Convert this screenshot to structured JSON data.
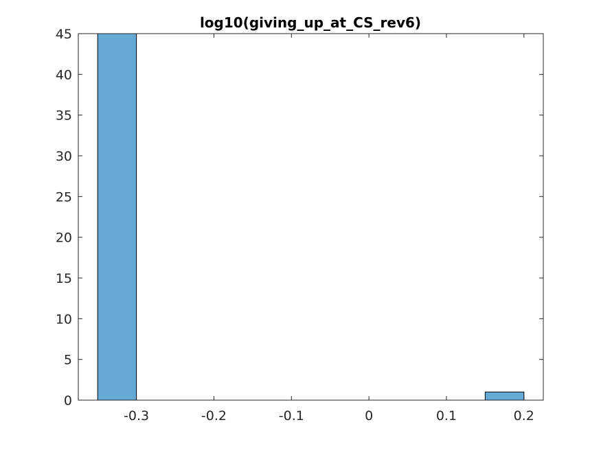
{
  "chart_data": {
    "type": "bar",
    "title": "log10(giving_up_at_CS_rev6)",
    "xlabel": "",
    "ylabel": "",
    "bins": [
      {
        "x0": -0.35,
        "x1": -0.3,
        "count": 45
      },
      {
        "x0": -0.3,
        "x1": -0.25,
        "count": 0
      },
      {
        "x0": -0.25,
        "x1": -0.2,
        "count": 0
      },
      {
        "x0": -0.2,
        "x1": -0.15,
        "count": 0
      },
      {
        "x0": -0.15,
        "x1": -0.1,
        "count": 0
      },
      {
        "x0": -0.1,
        "x1": -0.05,
        "count": 0
      },
      {
        "x0": -0.05,
        "x1": 0.0,
        "count": 0
      },
      {
        "x0": 0.0,
        "x1": 0.05,
        "count": 0
      },
      {
        "x0": 0.05,
        "x1": 0.1,
        "count": 0
      },
      {
        "x0": 0.1,
        "x1": 0.15,
        "count": 0
      },
      {
        "x0": 0.15,
        "x1": 0.2,
        "count": 1
      }
    ],
    "xlim": [
      -0.375,
      0.225
    ],
    "ylim": [
      0,
      45
    ],
    "xticks": [
      {
        "value": -0.3,
        "label": "-0.3"
      },
      {
        "value": -0.2,
        "label": "-0.2"
      },
      {
        "value": -0.1,
        "label": "-0.1"
      },
      {
        "value": 0,
        "label": "0"
      },
      {
        "value": 0.1,
        "label": "0.1"
      },
      {
        "value": 0.2,
        "label": "0.2"
      }
    ],
    "yticks": [
      {
        "value": 0,
        "label": "0"
      },
      {
        "value": 5,
        "label": "5"
      },
      {
        "value": 10,
        "label": "10"
      },
      {
        "value": 15,
        "label": "15"
      },
      {
        "value": 20,
        "label": "20"
      },
      {
        "value": 25,
        "label": "25"
      },
      {
        "value": 30,
        "label": "30"
      },
      {
        "value": 35,
        "label": "35"
      },
      {
        "value": 40,
        "label": "40"
      },
      {
        "value": 45,
        "label": "45"
      }
    ],
    "grid": false,
    "legend": "none",
    "colors": {
      "bar_fill": "#65a9d7",
      "bar_edge": "#000000",
      "axis": "#262626",
      "background": "#ffffff"
    }
  }
}
